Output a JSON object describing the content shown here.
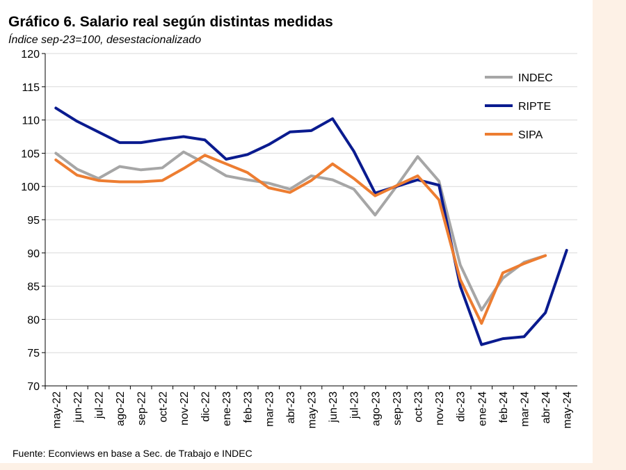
{
  "chart_data": {
    "type": "line",
    "title": "Gráfico 6. Salario real según distintas medidas",
    "subtitle": "Índice sep-23=100, desestacionalizado",
    "source": "Fuente: Econviews en base a Sec. de Trabajo e INDEC",
    "categories": [
      "may-22",
      "jun-22",
      "jul-22",
      "ago-22",
      "sep-22",
      "oct-22",
      "nov-22",
      "dic-22",
      "ene-23",
      "feb-23",
      "mar-23",
      "abr-23",
      "may-23",
      "jun-23",
      "jul-23",
      "ago-23",
      "sep-23",
      "oct-23",
      "nov-23",
      "dic-23",
      "ene-24",
      "feb-24",
      "mar-24",
      "abr-24",
      "may-24"
    ],
    "series": [
      {
        "name": "INDEC",
        "color": "#a6a6a6",
        "values": [
          105,
          102.6,
          101.2,
          103,
          102.5,
          102.8,
          105.2,
          103.5,
          101.6,
          101,
          100.5,
          99.6,
          101.6,
          101,
          99.6,
          95.7,
          100,
          104.5,
          100.8,
          88.2,
          81.4,
          86.2,
          88.6,
          89.6,
          null
        ]
      },
      {
        "name": "RIPTE",
        "color": "#0a1b8f",
        "values": [
          111.8,
          109.8,
          108.2,
          106.6,
          106.6,
          107.1,
          107.5,
          107,
          104.1,
          104.8,
          106.3,
          108.2,
          108.4,
          110.2,
          105.3,
          99,
          100,
          101,
          100.2,
          85,
          76.2,
          77.1,
          77.4,
          81,
          90.4
        ]
      },
      {
        "name": "SIPA",
        "color": "#ed7d31",
        "values": [
          104,
          101.7,
          100.9,
          100.7,
          100.7,
          100.9,
          102.7,
          104.7,
          103.4,
          102.1,
          99.8,
          99.1,
          100.9,
          103.4,
          101.2,
          98.6,
          100.1,
          101.6,
          98,
          86,
          79.4,
          87,
          88.4,
          89.6,
          null
        ]
      }
    ],
    "ylim": [
      70,
      120
    ],
    "yticks": [
      70,
      75,
      80,
      85,
      90,
      95,
      100,
      105,
      110,
      115,
      120
    ],
    "grid": true,
    "legend": "top-right"
  }
}
